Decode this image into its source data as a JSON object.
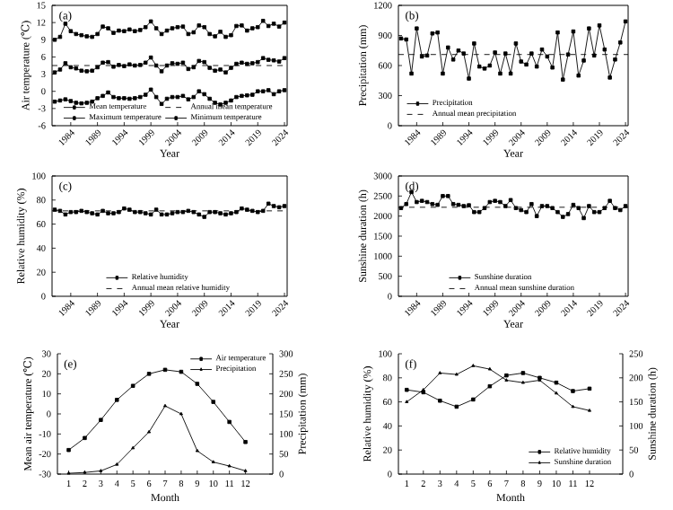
{
  "chart_data": [
    {
      "type": "line",
      "annotations": [
        "(a)"
      ],
      "xlabel": "Year",
      "ylabel": "Air temperature (℃)",
      "x": [
        1981,
        1982,
        1983,
        1984,
        1985,
        1986,
        1987,
        1988,
        1989,
        1990,
        1991,
        1992,
        1993,
        1994,
        1995,
        1996,
        1997,
        1998,
        1999,
        2000,
        2001,
        2002,
        2003,
        2004,
        2005,
        2006,
        2007,
        2008,
        2009,
        2010,
        2011,
        2012,
        2013,
        2014,
        2015,
        2016,
        2017,
        2018,
        2019,
        2020,
        2021,
        2022,
        2023,
        2024
      ],
      "xlim": [
        1980.5,
        2024.5
      ],
      "xticks": [
        1984,
        1989,
        1994,
        1999,
        2004,
        2009,
        2014,
        2019,
        2024
      ],
      "ylim": [
        -6,
        15
      ],
      "yticks": [
        -6,
        -3,
        0,
        3,
        6,
        9,
        12,
        15
      ],
      "marker": "square",
      "legend": "bottom",
      "series": [
        {
          "name": "Mean temperature",
          "color": "#000000",
          "values": [
            3.3,
            3.8,
            4.9,
            4.2,
            4,
            3.6,
            3.5,
            3.6,
            4.2,
            5,
            5.1,
            4.3,
            4.6,
            4.4,
            4.7,
            4.5,
            4.6,
            5,
            5.9,
            4.5,
            3.5,
            4.5,
            4.9,
            4.8,
            5,
            3.9,
            4.2,
            5.3,
            5.1,
            4.1,
            3.6,
            3.8,
            3.3,
            4.1,
            4.8,
            5,
            4.8,
            4.9,
            5.1,
            5.8,
            5.5,
            5.4,
            5.2,
            5.8
          ]
        },
        {
          "name": "Maximum temperature",
          "color": "#000000",
          "values": [
            9,
            9.5,
            11.8,
            10.5,
            10,
            9.8,
            9.6,
            9.5,
            10,
            11.3,
            11,
            10.2,
            10.6,
            10.5,
            10.8,
            10.5,
            10.7,
            11.2,
            12.2,
            11,
            10,
            10.6,
            11,
            11.2,
            11.3,
            10,
            10.3,
            11.5,
            11.2,
            10,
            9.6,
            10.4,
            9.5,
            9.8,
            11.4,
            11.5,
            10.6,
            11,
            11.2,
            12.3,
            11.4,
            11.8,
            11.3,
            12
          ]
        },
        {
          "name": "Minimum temperature",
          "color": "#000000",
          "values": [
            -1.8,
            -1.6,
            -1.4,
            -1.7,
            -2,
            -2.1,
            -2,
            -1.8,
            -1.2,
            -0.8,
            -0.2,
            -1,
            -1.2,
            -1.2,
            -1.3,
            -1.2,
            -1,
            -0.6,
            0.3,
            -1,
            -2.2,
            -1.3,
            -1,
            -1,
            -0.8,
            -1.4,
            -1,
            0,
            -0.5,
            -1.3,
            -2,
            -2.3,
            -2,
            -1.6,
            -1,
            -0.8,
            -0.7,
            -0.6,
            0,
            0,
            0.2,
            -0.5,
            0,
            0.2
          ]
        }
      ],
      "ref_lines": [
        {
          "axis": "y",
          "value": 4.5,
          "label": "Annual mean temperature",
          "line_style": "dashed",
          "color": "#000000"
        }
      ]
    },
    {
      "type": "line",
      "annotations": [
        "(b)"
      ],
      "xlabel": "Year",
      "ylabel": "Precipitation (mm)",
      "x": [
        1981,
        1982,
        1983,
        1984,
        1985,
        1986,
        1987,
        1988,
        1989,
        1990,
        1991,
        1992,
        1993,
        1994,
        1995,
        1996,
        1997,
        1998,
        1999,
        2000,
        2001,
        2002,
        2003,
        2004,
        2005,
        2006,
        2007,
        2008,
        2009,
        2010,
        2011,
        2012,
        2013,
        2014,
        2015,
        2016,
        2017,
        2018,
        2019,
        2020,
        2021,
        2022,
        2023,
        2024
      ],
      "xlim": [
        1980.5,
        2024.5
      ],
      "xticks": [
        1984,
        1989,
        1994,
        1999,
        2004,
        2009,
        2014,
        2019,
        2024
      ],
      "ylim": [
        0,
        1200
      ],
      "yticks": [
        0,
        300,
        600,
        900,
        1200
      ],
      "marker": "square",
      "legend": "bottom left",
      "series": [
        {
          "name": "Precipitation",
          "color": "#000000",
          "values": [
            870,
            860,
            520,
            970,
            690,
            700,
            920,
            930,
            520,
            780,
            660,
            750,
            720,
            470,
            820,
            590,
            570,
            600,
            730,
            520,
            720,
            520,
            820,
            640,
            610,
            720,
            590,
            760,
            690,
            580,
            930,
            460,
            710,
            940,
            500,
            650,
            970,
            700,
            1000,
            760,
            480,
            660,
            830,
            1040
          ]
        }
      ],
      "ref_lines": [
        {
          "axis": "y",
          "value": 710,
          "label": "Annual mean precipitation",
          "line_style": "dashed",
          "color": "#000000"
        }
      ]
    },
    {
      "type": "line",
      "annotations": [
        "(c)"
      ],
      "xlabel": "Year",
      "ylabel": "Relative humidity (%)",
      "x": [
        1981,
        1982,
        1983,
        1984,
        1985,
        1986,
        1987,
        1988,
        1989,
        1990,
        1991,
        1992,
        1993,
        1994,
        1995,
        1996,
        1997,
        1998,
        1999,
        2000,
        2001,
        2002,
        2003,
        2004,
        2005,
        2006,
        2007,
        2008,
        2009,
        2010,
        2011,
        2012,
        2013,
        2014,
        2015,
        2016,
        2017,
        2018,
        2019,
        2020,
        2021,
        2022,
        2023,
        2024
      ],
      "xlim": [
        1980.5,
        2024.5
      ],
      "xticks": [
        1984,
        1989,
        1994,
        1999,
        2004,
        2009,
        2014,
        2019,
        2024
      ],
      "ylim": [
        0,
        100
      ],
      "yticks": [
        0,
        20,
        40,
        60,
        80,
        100
      ],
      "marker": "square",
      "legend": "bottom",
      "series": [
        {
          "name": "Relative humidity",
          "color": "#000000",
          "values": [
            72,
            71,
            68,
            70,
            70,
            71,
            70,
            69,
            68,
            71,
            69,
            69,
            70,
            73,
            72,
            70,
            70,
            69,
            68,
            72,
            68,
            68,
            69,
            70,
            70,
            71,
            70,
            68,
            66,
            70,
            70,
            69,
            68,
            69,
            70,
            73,
            72,
            71,
            70,
            71,
            77,
            75,
            74,
            75
          ]
        }
      ],
      "ref_lines": [
        {
          "axis": "y",
          "value": 71,
          "label": "Annual mean relative humidity",
          "line_style": "dashed",
          "color": "#000000"
        }
      ]
    },
    {
      "type": "line",
      "annotations": [
        "(d)"
      ],
      "xlabel": "Year",
      "ylabel": "Sunshine duration (h)",
      "x": [
        1981,
        1982,
        1983,
        1984,
        1985,
        1986,
        1987,
        1988,
        1989,
        1990,
        1991,
        1992,
        1993,
        1994,
        1995,
        1996,
        1997,
        1998,
        1999,
        2000,
        2001,
        2002,
        2003,
        2004,
        2005,
        2006,
        2007,
        2008,
        2009,
        2010,
        2011,
        2012,
        2013,
        2014,
        2015,
        2016,
        2017,
        2018,
        2019,
        2020,
        2021,
        2022,
        2023,
        2024
      ],
      "xlim": [
        1980.5,
        2024.5
      ],
      "xticks": [
        1984,
        1989,
        1994,
        1999,
        2004,
        2009,
        2014,
        2019,
        2024
      ],
      "ylim": [
        0,
        3000
      ],
      "yticks": [
        0,
        500,
        1000,
        1500,
        2000,
        2500,
        3000
      ],
      "marker": "square",
      "legend": "bottom",
      "series": [
        {
          "name": "Sunshine duration",
          "color": "#000000",
          "values": [
            2200,
            2300,
            2600,
            2350,
            2380,
            2350,
            2300,
            2280,
            2500,
            2500,
            2300,
            2280,
            2250,
            2270,
            2100,
            2100,
            2200,
            2350,
            2380,
            2350,
            2250,
            2400,
            2200,
            2150,
            2100,
            2300,
            2000,
            2250,
            2250,
            2200,
            2100,
            1980,
            2050,
            2280,
            2200,
            1950,
            2250,
            2100,
            2100,
            2200,
            2380,
            2200,
            2150,
            2250
          ]
        }
      ],
      "ref_lines": [
        {
          "axis": "y",
          "value": 2220,
          "label": "Annual mean sunshine duration",
          "line_style": "dashed",
          "color": "#000000"
        }
      ]
    },
    {
      "type": "line",
      "annotations": [
        "(e)"
      ],
      "xlabel": "Month",
      "ylabel": "Mean air temperature (℃)",
      "y2label": "Precipitation (mm)",
      "x": [
        1,
        2,
        3,
        4,
        5,
        6,
        7,
        8,
        9,
        10,
        11,
        12
      ],
      "xlim": [
        0.3,
        13.7
      ],
      "xticks": [
        1,
        2,
        3,
        4,
        5,
        6,
        7,
        8,
        9,
        10,
        11,
        12
      ],
      "ylim": [
        -30,
        30
      ],
      "yticks": [
        -30,
        -20,
        -10,
        0,
        10,
        20,
        30
      ],
      "y2lim": [
        0,
        300
      ],
      "y2ticks": [
        0,
        50,
        100,
        150,
        200,
        250,
        300
      ],
      "legend": "top right",
      "series": [
        {
          "name": "Air temperature",
          "color": "#000000",
          "marker": "square",
          "values": [
            -18,
            -12,
            -3,
            7,
            14,
            20,
            22,
            21,
            15,
            6,
            -4,
            -14
          ]
        },
        {
          "name": "Precipitation",
          "color": "#000000",
          "marker": "triangle",
          "axis": "y2",
          "values": [
            2,
            4,
            8,
            24,
            65,
            105,
            170,
            150,
            58,
            30,
            20,
            8
          ]
        }
      ]
    },
    {
      "type": "line",
      "annotations": [
        "(f)"
      ],
      "xlabel": "Month",
      "ylabel": "Relative humidity (%)",
      "y2label": "Sunshine duration (h)",
      "x": [
        1,
        2,
        3,
        4,
        5,
        6,
        7,
        8,
        9,
        10,
        11,
        12
      ],
      "xlim": [
        0.5,
        14
      ],
      "xticks": [
        1,
        2,
        3,
        4,
        5,
        6,
        7,
        8,
        9,
        10,
        11,
        12
      ],
      "ylim": [
        0,
        100
      ],
      "yticks": [
        0,
        20,
        40,
        60,
        80,
        100
      ],
      "y2lim": [
        0,
        250
      ],
      "y2ticks": [
        0,
        50,
        100,
        150,
        200,
        250
      ],
      "legend": "bottom right",
      "series": [
        {
          "name": "Relative humidity",
          "color": "#000000",
          "marker": "square",
          "values": [
            70,
            68,
            61,
            56,
            62,
            73,
            82,
            84,
            80,
            76,
            69,
            71
          ]
        },
        {
          "name": "Sunshine duration",
          "color": "#000000",
          "marker": "triangle",
          "axis": "y2",
          "values": [
            150,
            175,
            210,
            207,
            225,
            218,
            195,
            190,
            195,
            168,
            140,
            132
          ]
        }
      ]
    }
  ]
}
